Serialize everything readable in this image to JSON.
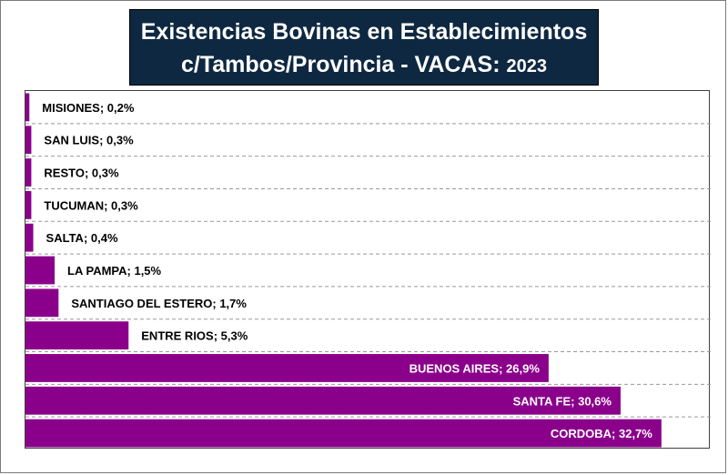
{
  "chart_data": {
    "type": "bar",
    "orientation": "horizontal",
    "title_line1": "Existencias Bovinas en Establecimientos",
    "title_line2": "c/Tambos/Provincia - VACAS: ",
    "title_year": "2023",
    "categories": [
      "MISIONES",
      "SAN LUIS",
      "RESTO",
      "TUCUMAN",
      "SALTA",
      "LA PAMPA",
      "SANTIAGO DEL ESTERO",
      "ENTRE RIOS",
      "BUENOS AIRES",
      "SANTA FE",
      "CORDOBA"
    ],
    "values": [
      0.2,
      0.3,
      0.3,
      0.3,
      0.4,
      1.5,
      1.7,
      5.3,
      26.9,
      30.6,
      32.7
    ],
    "data_labels": [
      "MISIONES; 0,2%",
      "SAN LUIS; 0,3%",
      "RESTO; 0,3%",
      "TUCUMAN; 0,3%",
      "SALTA; 0,4%",
      "LA PAMPA; 1,5%",
      "SANTIAGO DEL ESTERO; 1,7%",
      "ENTRE RIOS; 5,3%",
      "BUENOS AIRES; 26,9%",
      "SANTA FE; 30,6%",
      "CORDOBA; 32,7%"
    ],
    "unit": "%",
    "xlim": [
      0,
      35
    ],
    "grid": "dashed-horizontal",
    "legend": "none",
    "colors": {
      "bar": "#8b008b",
      "title_bg": "#0e2841",
      "title_text": "#ffffff",
      "grid": "#999999"
    }
  }
}
